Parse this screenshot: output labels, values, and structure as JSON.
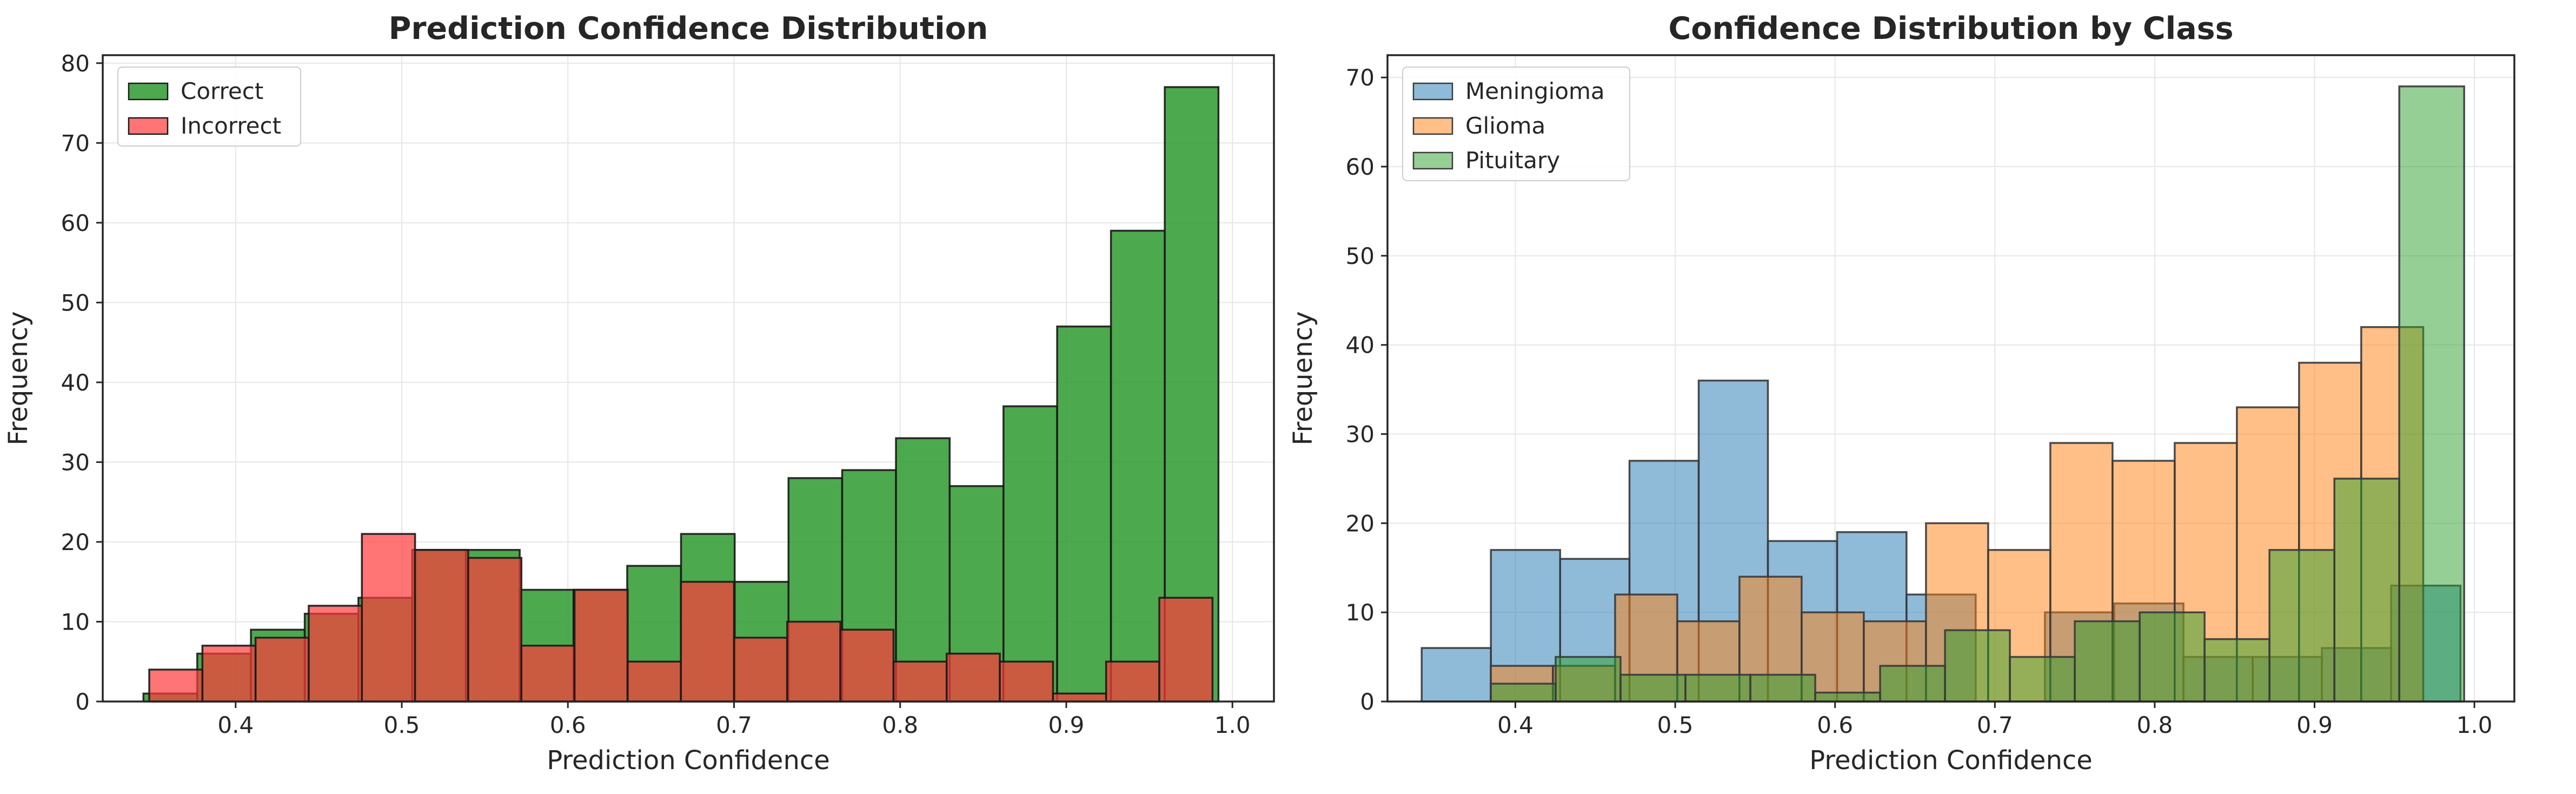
{
  "chart_data": [
    {
      "type": "bar",
      "title": "Prediction Confidence Distribution",
      "xlabel": "Prediction Confidence",
      "ylabel": "Frequency",
      "xlim": [
        0.32,
        1.025
      ],
      "ylim": [
        0,
        81
      ],
      "xticks": [
        "0.4",
        "0.5",
        "0.6",
        "0.7",
        "0.8",
        "0.9",
        "1.0"
      ],
      "yticks": [
        "0",
        "10",
        "20",
        "30",
        "40",
        "50",
        "60",
        "70",
        "80"
      ],
      "grid": true,
      "legend_position": "upper-left",
      "series": [
        {
          "name": "Correct",
          "color": "#2e9a2e",
          "bins": [
            [
              0.3445,
              0.3769,
              1
            ],
            [
              0.3769,
              0.4092,
              6
            ],
            [
              0.4092,
              0.4416,
              9
            ],
            [
              0.4416,
              0.4739,
              11
            ],
            [
              0.4739,
              0.5063,
              13
            ],
            [
              0.5063,
              0.5386,
              19
            ],
            [
              0.5386,
              0.571,
              19
            ],
            [
              0.571,
              0.6034,
              14
            ],
            [
              0.6034,
              0.6357,
              14
            ],
            [
              0.6357,
              0.6681,
              17
            ],
            [
              0.6681,
              0.7004,
              21
            ],
            [
              0.7004,
              0.7328,
              15
            ],
            [
              0.7328,
              0.7651,
              28
            ],
            [
              0.7651,
              0.7975,
              29
            ],
            [
              0.7975,
              0.8298,
              33
            ],
            [
              0.8298,
              0.8622,
              27
            ],
            [
              0.8622,
              0.8945,
              37
            ],
            [
              0.8945,
              0.9269,
              47
            ],
            [
              0.9269,
              0.9593,
              59
            ],
            [
              0.9593,
              0.9916,
              77
            ]
          ]
        },
        {
          "name": "Incorrect",
          "color": "#ff3b3b",
          "bins": [
            [
              0.348,
              0.38,
              4
            ],
            [
              0.38,
              0.412,
              7
            ],
            [
              0.412,
              0.444,
              8
            ],
            [
              0.444,
              0.476,
              12
            ],
            [
              0.476,
              0.508,
              21
            ],
            [
              0.508,
              0.54,
              19
            ],
            [
              0.54,
              0.572,
              18
            ],
            [
              0.572,
              0.604,
              7
            ],
            [
              0.604,
              0.636,
              14
            ],
            [
              0.636,
              0.668,
              5
            ],
            [
              0.668,
              0.7,
              15
            ],
            [
              0.7,
              0.732,
              8
            ],
            [
              0.732,
              0.764,
              10
            ],
            [
              0.764,
              0.796,
              9
            ],
            [
              0.796,
              0.828,
              5
            ],
            [
              0.828,
              0.86,
              6
            ],
            [
              0.86,
              0.892,
              5
            ],
            [
              0.892,
              0.924,
              1
            ],
            [
              0.924,
              0.956,
              5
            ],
            [
              0.956,
              0.988,
              13
            ]
          ]
        }
      ]
    },
    {
      "type": "bar",
      "title": "Confidence Distribution by Class",
      "xlabel": "Prediction Confidence",
      "ylabel": "Frequency",
      "xlim": [
        0.32,
        1.025
      ],
      "ylim": [
        0,
        72.5
      ],
      "xticks": [
        "0.4",
        "0.5",
        "0.6",
        "0.7",
        "0.8",
        "0.9",
        "1.0"
      ],
      "yticks": [
        "0",
        "10",
        "20",
        "30",
        "40",
        "50",
        "60",
        "70"
      ],
      "grid": true,
      "legend_position": "upper-left",
      "series": [
        {
          "name": "Meningioma",
          "color": "#1f77b4",
          "bins": [
            [
              0.3414,
              0.3847,
              6
            ],
            [
              0.3847,
              0.428,
              17
            ],
            [
              0.428,
              0.4714,
              16
            ],
            [
              0.4714,
              0.5147,
              27
            ],
            [
              0.5147,
              0.558,
              36
            ],
            [
              0.558,
              0.6013,
              18
            ],
            [
              0.6013,
              0.6447,
              19
            ],
            [
              0.6447,
              0.688,
              12
            ],
            [
              0.688,
              0.7313,
              0
            ],
            [
              0.7313,
              0.7746,
              10
            ],
            [
              0.7746,
              0.818,
              11
            ],
            [
              0.818,
              0.8613,
              5
            ],
            [
              0.8613,
              0.9046,
              5
            ],
            [
              0.9046,
              0.9479,
              6
            ],
            [
              0.9479,
              0.9913,
              13
            ]
          ]
        },
        {
          "name": "Glioma",
          "color": "#ff7f0e",
          "bins": [
            [
              0.3846,
              0.4235,
              4
            ],
            [
              0.4235,
              0.4624,
              4
            ],
            [
              0.4624,
              0.5013,
              12
            ],
            [
              0.5013,
              0.5402,
              9
            ],
            [
              0.5402,
              0.5791,
              14
            ],
            [
              0.5791,
              0.618,
              10
            ],
            [
              0.618,
              0.6569,
              9
            ],
            [
              0.6569,
              0.6958,
              20
            ],
            [
              0.6958,
              0.7347,
              17
            ],
            [
              0.7347,
              0.7736,
              29
            ],
            [
              0.7736,
              0.8125,
              27
            ],
            [
              0.8125,
              0.8514,
              29
            ],
            [
              0.8514,
              0.8903,
              33
            ],
            [
              0.8903,
              0.9292,
              38
            ],
            [
              0.9292,
              0.968,
              42
            ]
          ]
        },
        {
          "name": "Pituitary",
          "color": "#2ca02c",
          "bins": [
            [
              0.3846,
              0.4252,
              2
            ],
            [
              0.4252,
              0.4658,
              5
            ],
            [
              0.4658,
              0.5064,
              3
            ],
            [
              0.5064,
              0.547,
              3
            ],
            [
              0.547,
              0.5876,
              3
            ],
            [
              0.5876,
              0.6282,
              1
            ],
            [
              0.6282,
              0.6688,
              4
            ],
            [
              0.6688,
              0.7094,
              8
            ],
            [
              0.7094,
              0.75,
              5
            ],
            [
              0.75,
              0.7906,
              9
            ],
            [
              0.7906,
              0.8312,
              10
            ],
            [
              0.8312,
              0.8718,
              7
            ],
            [
              0.8718,
              0.9124,
              17
            ],
            [
              0.9124,
              0.953,
              25
            ],
            [
              0.953,
              0.9936,
              69
            ]
          ]
        }
      ]
    }
  ]
}
